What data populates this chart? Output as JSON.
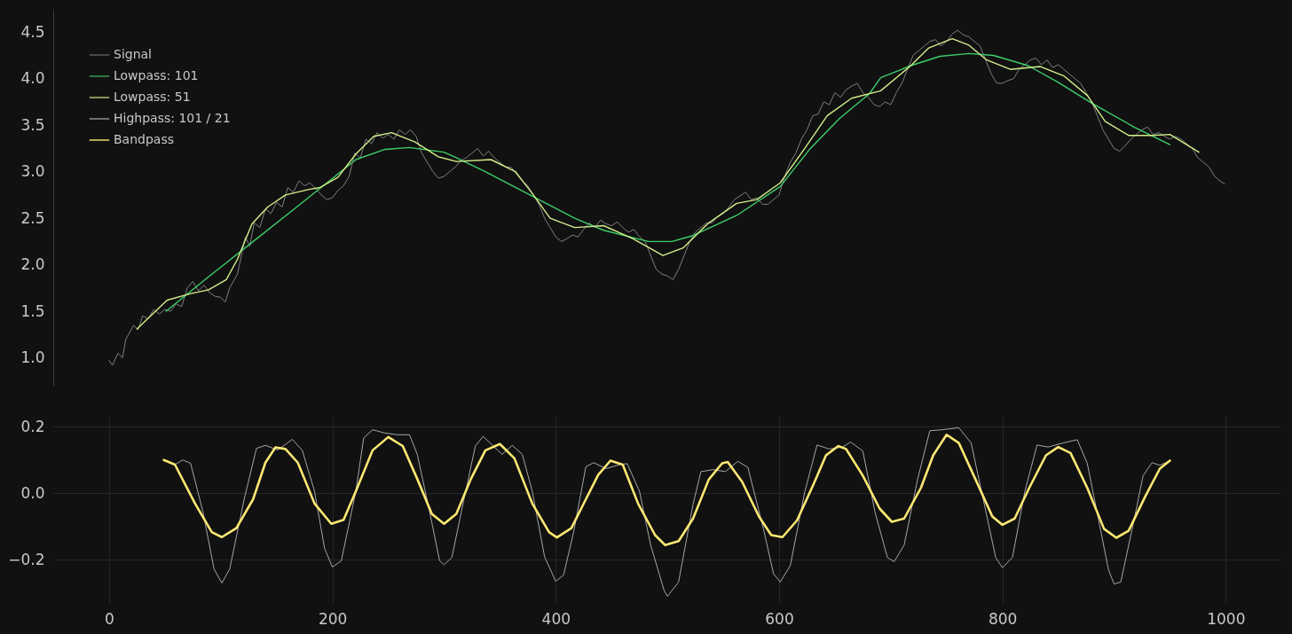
{
  "chart_data": [
    {
      "type": "line",
      "xticks": [
        0,
        200,
        400,
        600,
        800,
        1000
      ],
      "ylim": [
        0.7,
        4.75
      ],
      "yticks": [
        {
          "value": 1,
          "label": "1.0"
        },
        1.5,
        {
          "value": 2,
          "label": "2.0"
        },
        2.5,
        {
          "value": 3,
          "label": "3.0"
        },
        3.5,
        {
          "value": 4,
          "label": "4.0"
        },
        4.5
      ],
      "grid": false,
      "legend": "top left",
      "tick_labels": "y",
      "series": [
        {
          "name": "Signal",
          "color": "#7f7f7f",
          "x": [
            0,
            3,
            8,
            12,
            15,
            22,
            26,
            30,
            35,
            40,
            45,
            50,
            55,
            60,
            65,
            70,
            75,
            80,
            85,
            90,
            95,
            100,
            104,
            108,
            115,
            122,
            126,
            130,
            135,
            140,
            145,
            150,
            155,
            160,
            165,
            170,
            175,
            180,
            185,
            190,
            195,
            200,
            205,
            210,
            215,
            220,
            225,
            230,
            235,
            240,
            245,
            250,
            255,
            260,
            265,
            270,
            275,
            280,
            285,
            290,
            295,
            300,
            305,
            310,
            315,
            320,
            325,
            330,
            335,
            340,
            345,
            350,
            355,
            360,
            365,
            370,
            375,
            380,
            385,
            390,
            395,
            400,
            405,
            410,
            415,
            420,
            425,
            430,
            435,
            440,
            445,
            450,
            455,
            460,
            465,
            470,
            475,
            480,
            485,
            490,
            495,
            500,
            505,
            510,
            515,
            520,
            525,
            530,
            535,
            540,
            545,
            550,
            555,
            560,
            565,
            570,
            575,
            580,
            585,
            590,
            595,
            600,
            605,
            610,
            615,
            620,
            625,
            630,
            635,
            640,
            645,
            650,
            655,
            660,
            665,
            670,
            675,
            680,
            685,
            690,
            695,
            700,
            705,
            710,
            715,
            720,
            725,
            730,
            735,
            740,
            745,
            750,
            755,
            760,
            765,
            770,
            775,
            780,
            785,
            790,
            795,
            800,
            805,
            810,
            815,
            820,
            825,
            830,
            835,
            840,
            845,
            850,
            855,
            860,
            865,
            870,
            875,
            880,
            885,
            890,
            895,
            900,
            905,
            910,
            915,
            920,
            925,
            930,
            935,
            940,
            945,
            950,
            955,
            960,
            965,
            970,
            975,
            980,
            985,
            990,
            995,
            999
          ],
          "values": [
            0.97,
            0.92,
            1.05,
            1.0,
            1.2,
            1.35,
            1.3,
            1.45,
            1.42,
            1.52,
            1.47,
            1.52,
            1.5,
            1.58,
            1.55,
            1.75,
            1.82,
            1.72,
            1.78,
            1.7,
            1.66,
            1.65,
            1.6,
            1.75,
            1.9,
            2.3,
            2.2,
            2.45,
            2.4,
            2.6,
            2.55,
            2.67,
            2.62,
            2.83,
            2.78,
            2.9,
            2.85,
            2.88,
            2.82,
            2.75,
            2.7,
            2.72,
            2.8,
            2.85,
            2.95,
            3.2,
            3.15,
            3.35,
            3.3,
            3.42,
            3.36,
            3.4,
            3.35,
            3.45,
            3.4,
            3.45,
            3.38,
            3.2,
            3.1,
            3.0,
            2.93,
            2.95,
            3.0,
            3.05,
            3.12,
            3.15,
            3.2,
            3.25,
            3.17,
            3.22,
            3.15,
            3.1,
            3.05,
            3.05,
            2.97,
            2.9,
            2.85,
            2.75,
            2.65,
            2.5,
            2.4,
            2.3,
            2.25,
            2.28,
            2.32,
            2.3,
            2.38,
            2.45,
            2.4,
            2.48,
            2.44,
            2.42,
            2.46,
            2.4,
            2.35,
            2.38,
            2.3,
            2.25,
            2.1,
            1.95,
            1.9,
            1.88,
            1.84,
            1.95,
            2.1,
            2.25,
            2.35,
            2.4,
            2.45,
            2.45,
            2.52,
            2.55,
            2.62,
            2.7,
            2.74,
            2.78,
            2.7,
            2.72,
            2.65,
            2.65,
            2.7,
            2.75,
            2.95,
            3.1,
            3.2,
            3.35,
            3.45,
            3.6,
            3.62,
            3.75,
            3.72,
            3.85,
            3.8,
            3.88,
            3.92,
            3.95,
            3.85,
            3.8,
            3.72,
            3.7,
            3.75,
            3.72,
            3.85,
            3.95,
            4.1,
            4.25,
            4.3,
            4.35,
            4.4,
            4.42,
            4.35,
            4.4,
            4.48,
            4.52,
            4.47,
            4.45,
            4.4,
            4.35,
            4.2,
            4.05,
            3.95,
            3.95,
            3.98,
            4.0,
            4.1,
            4.15,
            4.2,
            4.22,
            4.15,
            4.2,
            4.12,
            4.15,
            4.1,
            4.05,
            4.0,
            3.95,
            3.85,
            3.75,
            3.6,
            3.45,
            3.35,
            3.25,
            3.22,
            3.28,
            3.35,
            3.4,
            3.45,
            3.48,
            3.4,
            3.42,
            3.38,
            3.35,
            3.38,
            3.35,
            3.3,
            3.25,
            3.15,
            3.1,
            3.05,
            2.95,
            2.9,
            2.87
          ]
        },
        {
          "name": "Lowpass: 101",
          "color": "#3ecf6a",
          "x": [
            51,
            89,
            129,
            168,
            195,
            221,
            247,
            269,
            300,
            311,
            337,
            372,
            417,
            443,
            483,
            504,
            522,
            562,
            601,
            628,
            654,
            681,
            691,
            718,
            744,
            770,
            792,
            823,
            850,
            881,
            918,
            950
          ],
          "values": [
            1.5,
            1.87,
            2.25,
            2.62,
            2.88,
            3.13,
            3.24,
            3.26,
            3.21,
            3.15,
            3.0,
            2.78,
            2.5,
            2.37,
            2.25,
            2.25,
            2.31,
            2.53,
            2.84,
            3.25,
            3.57,
            3.84,
            4.01,
            4.14,
            4.24,
            4.27,
            4.25,
            4.14,
            3.96,
            3.73,
            3.48,
            3.29
          ]
        },
        {
          "name": "Lowpass: 51",
          "color": "#d2f08a",
          "x": [
            25,
            52,
            73,
            89,
            105,
            115,
            128,
            142,
            158,
            179,
            189,
            205,
            221,
            237,
            253,
            274,
            295,
            311,
            342,
            364,
            380,
            395,
            417,
            443,
            469,
            496,
            514,
            536,
            562,
            580,
            601,
            623,
            643,
            665,
            691,
            718,
            734,
            755,
            770,
            786,
            807,
            834,
            855,
            876,
            892,
            913,
            934,
            950,
            976
          ],
          "values": [
            1.31,
            1.62,
            1.69,
            1.73,
            1.84,
            2.06,
            2.44,
            2.62,
            2.75,
            2.81,
            2.83,
            2.94,
            3.19,
            3.38,
            3.42,
            3.32,
            3.16,
            3.11,
            3.13,
            3.0,
            2.75,
            2.5,
            2.4,
            2.42,
            2.28,
            2.1,
            2.18,
            2.44,
            2.66,
            2.7,
            2.88,
            3.25,
            3.6,
            3.79,
            3.87,
            4.14,
            4.33,
            4.43,
            4.36,
            4.2,
            4.1,
            4.13,
            4.03,
            3.82,
            3.54,
            3.39,
            3.39,
            3.4,
            3.21
          ]
        }
      ]
    },
    {
      "type": "line",
      "xlim": [
        -50,
        1049
      ],
      "xticks": [
        0,
        200,
        400,
        600,
        800,
        1000
      ],
      "ylim": [
        -0.33,
        0.23
      ],
      "yticks": [
        {
          "value": -0.2,
          "label": "−0.2"
        },
        {
          "value": 0,
          "label": "0.0"
        },
        0.2
      ],
      "grid": true,
      "legend": "top left",
      "series": [
        {
          "name": "Highpass: 101 / 21",
          "color": "#a6a6a6",
          "x": [
            59,
            66,
            73,
            84,
            94,
            101,
            108,
            121,
            132,
            140,
            151,
            164,
            173,
            184,
            193,
            200,
            208,
            221,
            228,
            236,
            247,
            258,
            269,
            276,
            287,
            296,
            300,
            307,
            317,
            328,
            335,
            344,
            352,
            361,
            370,
            379,
            390,
            400,
            407,
            416,
            427,
            434,
            445,
            457,
            464,
            475,
            485,
            497,
            500,
            510,
            523,
            530,
            541,
            552,
            563,
            572,
            586,
            595,
            601,
            610,
            623,
            634,
            645,
            657,
            664,
            675,
            686,
            697,
            703,
            712,
            724,
            735,
            746,
            761,
            772,
            783,
            794,
            800,
            809,
            820,
            831,
            841,
            854,
            867,
            876,
            887,
            895,
            900,
            906,
            917,
            926,
            934,
            941,
            950
          ],
          "values": [
            0.086,
            0.1,
            0.09,
            -0.055,
            -0.228,
            -0.27,
            -0.228,
            -0.018,
            0.135,
            0.144,
            0.13,
            0.162,
            0.129,
            0.006,
            -0.166,
            -0.222,
            -0.203,
            0.006,
            0.166,
            0.191,
            0.181,
            0.176,
            0.176,
            0.117,
            -0.055,
            -0.203,
            -0.215,
            -0.193,
            -0.031,
            0.142,
            0.171,
            0.142,
            0.117,
            0.144,
            0.117,
            0.006,
            -0.191,
            -0.265,
            -0.246,
            -0.117,
            0.08,
            0.092,
            0.074,
            0.086,
            0.089,
            0.006,
            -0.156,
            -0.292,
            -0.31,
            -0.267,
            -0.033,
            0.065,
            0.071,
            0.065,
            0.096,
            0.078,
            -0.107,
            -0.242,
            -0.267,
            -0.218,
            0.004,
            0.145,
            0.133,
            0.139,
            0.154,
            0.127,
            -0.058,
            -0.193,
            -0.206,
            -0.156,
            0.041,
            0.188,
            0.191,
            0.197,
            0.151,
            -0.021,
            -0.193,
            -0.224,
            -0.193,
            0.004,
            0.145,
            0.139,
            0.151,
            0.161,
            0.09,
            -0.095,
            -0.23,
            -0.273,
            -0.267,
            -0.095,
            0.053,
            0.092,
            0.084,
            0.098
          ]
        },
        {
          "name": "Bandpass",
          "color": "#ffe873",
          "x": [
            49,
            59,
            77,
            92,
            101,
            114,
            129,
            140,
            149,
            158,
            169,
            184,
            199,
            210,
            221,
            236,
            250,
            263,
            276,
            289,
            300,
            311,
            324,
            337,
            350,
            363,
            379,
            394,
            401,
            414,
            427,
            438,
            449,
            460,
            474,
            489,
            498,
            510,
            523,
            537,
            549,
            554,
            567,
            582,
            593,
            603,
            616,
            631,
            642,
            653,
            660,
            675,
            690,
            701,
            712,
            727,
            738,
            750,
            761,
            776,
            791,
            800,
            811,
            824,
            839,
            850,
            861,
            876,
            891,
            902,
            913,
            928,
            941,
            950
          ],
          "values": [
            0.1,
            0.086,
            -0.031,
            -0.117,
            -0.132,
            -0.105,
            -0.018,
            0.092,
            0.138,
            0.133,
            0.092,
            -0.031,
            -0.092,
            -0.08,
            0.006,
            0.129,
            0.169,
            0.142,
            0.043,
            -0.062,
            -0.092,
            -0.062,
            0.043,
            0.129,
            0.148,
            0.105,
            -0.031,
            -0.117,
            -0.133,
            -0.105,
            -0.018,
            0.055,
            0.098,
            0.086,
            -0.033,
            -0.126,
            -0.156,
            -0.144,
            -0.076,
            0.041,
            0.09,
            0.094,
            0.034,
            -0.07,
            -0.126,
            -0.132,
            -0.082,
            0.028,
            0.114,
            0.142,
            0.133,
            0.053,
            -0.046,
            -0.086,
            -0.076,
            0.016,
            0.114,
            0.176,
            0.151,
            0.041,
            -0.07,
            -0.095,
            -0.076,
            0.016,
            0.114,
            0.139,
            0.121,
            0.016,
            -0.107,
            -0.134,
            -0.113,
            -0.009,
            0.074,
            0.098
          ]
        }
      ]
    }
  ]
}
